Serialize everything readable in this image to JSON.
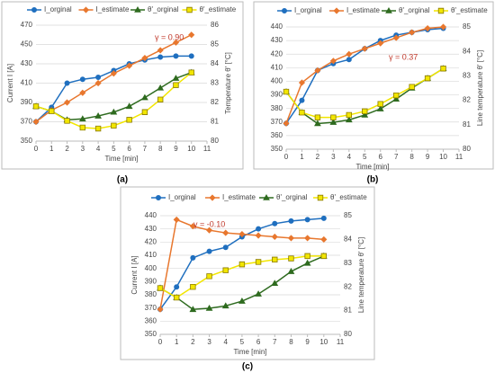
{
  "chart_data": [
    {
      "type": "line",
      "caption": "(a)",
      "annotation": "γ = 0.90",
      "xlabel": "Time [min]",
      "ylabel": "Current I [A]",
      "y2label": "Temperature θ' [°C]",
      "x": [
        0,
        1,
        2,
        3,
        4,
        5,
        6,
        7,
        8,
        9,
        10
      ],
      "xlim": [
        0,
        11
      ],
      "xticks": [
        0,
        1,
        2,
        3,
        4,
        5,
        6,
        7,
        8,
        9,
        10,
        11
      ],
      "ylim": [
        350,
        470
      ],
      "yticks": [
        350,
        370,
        390,
        410,
        430,
        450,
        470
      ],
      "y2lim": [
        80,
        86
      ],
      "y2ticks": [
        80,
        81,
        82,
        83,
        84,
        85,
        86
      ],
      "grid": true,
      "series": [
        {
          "name": "I_orginal",
          "color": "#1f6fbf",
          "marker": "circle",
          "values": [
            370,
            385,
            410,
            414,
            416,
            423,
            430,
            434,
            437,
            438,
            438
          ]
        },
        {
          "name": "I_estimate",
          "color": "#e8772e",
          "marker": "diamond",
          "values": [
            370,
            382,
            390,
            400,
            410,
            420,
            428,
            436,
            444,
            452,
            460
          ]
        },
        {
          "name": "θ'_orginal",
          "color": "#2e6b1f",
          "marker": "triangle",
          "axis": "y2",
          "values": [
            81.8,
            81.55,
            81.1,
            81.15,
            81.3,
            81.5,
            81.8,
            82.25,
            82.75,
            83.25,
            83.55
          ]
        },
        {
          "name": "θ'_estimate",
          "color": "#f2e600",
          "marker": "square",
          "axis": "y2",
          "values": [
            81.8,
            81.55,
            81.05,
            80.7,
            80.65,
            80.8,
            81.1,
            81.5,
            82.15,
            82.9,
            83.55
          ]
        }
      ]
    },
    {
      "type": "line",
      "caption": "(b)",
      "annotation": "γ = 0.37",
      "xlabel": "Time [min]",
      "y2label": "Line temperature θ' [°C]",
      "x": [
        0,
        1,
        2,
        3,
        4,
        5,
        6,
        7,
        8,
        9,
        10
      ],
      "xlim": [
        0,
        11
      ],
      "xticks": [
        0,
        1,
        2,
        3,
        4,
        5,
        6,
        7,
        8,
        9,
        10,
        11
      ],
      "ylim": [
        350,
        440
      ],
      "yticks": [
        350,
        360,
        370,
        380,
        390,
        400,
        410,
        420,
        430,
        440
      ],
      "y2lim": [
        80,
        85
      ],
      "y2ticks": [
        80,
        81,
        82,
        83,
        84,
        85
      ],
      "grid": true,
      "series": [
        {
          "name": "I_orginal",
          "color": "#1f6fbf",
          "marker": "circle",
          "values": [
            369,
            386,
            408,
            413,
            416,
            424,
            430,
            434,
            436,
            438,
            439
          ]
        },
        {
          "name": "I_estimate",
          "color": "#e8772e",
          "marker": "diamond",
          "values": [
            369,
            399,
            408,
            415,
            420,
            424,
            428,
            432,
            436,
            439,
            440
          ]
        },
        {
          "name": "θ'_orginal",
          "color": "#2e6b1f",
          "marker": "triangle",
          "axis": "y2",
          "values": [
            82.35,
            81.5,
            81.05,
            81.1,
            81.2,
            81.4,
            81.65,
            82.05,
            82.5,
            82.9,
            83.3
          ]
        },
        {
          "name": "θ'_estimate",
          "color": "#f2e600",
          "marker": "square",
          "axis": "y2",
          "values": [
            82.35,
            81.5,
            81.3,
            81.3,
            81.4,
            81.55,
            81.85,
            82.2,
            82.55,
            82.9,
            83.3
          ]
        }
      ]
    },
    {
      "type": "line",
      "caption": "(c)",
      "annotation": "γ = -0.10",
      "xlabel": "Time [min]",
      "ylabel": "Current I [A]",
      "y2label": "Line temperature θ' [°C]",
      "x": [
        0,
        1,
        2,
        3,
        4,
        5,
        6,
        7,
        8,
        9,
        10
      ],
      "xlim": [
        0,
        11
      ],
      "xticks": [
        0,
        1,
        2,
        3,
        4,
        5,
        6,
        7,
        8,
        9,
        10,
        11
      ],
      "ylim": [
        350,
        440
      ],
      "yticks": [
        350,
        360,
        370,
        380,
        390,
        400,
        410,
        420,
        430,
        440
      ],
      "y2lim": [
        80,
        85
      ],
      "y2ticks": [
        80,
        81,
        82,
        83,
        84,
        85
      ],
      "grid": true,
      "series": [
        {
          "name": "I_orginal",
          "color": "#1f6fbf",
          "marker": "circle",
          "values": [
            369,
            386,
            408,
            413,
            416,
            424,
            430,
            434,
            436,
            437,
            438
          ]
        },
        {
          "name": "I_estimate",
          "color": "#e8772e",
          "marker": "diamond",
          "values": [
            369,
            437,
            432,
            429,
            427,
            426,
            425,
            424,
            423,
            423,
            422
          ]
        },
        {
          "name": "θ'_orginal",
          "color": "#2e6b1f",
          "marker": "triangle",
          "axis": "y2",
          "values": [
            81.95,
            81.55,
            81.05,
            81.1,
            81.2,
            81.4,
            81.7,
            82.15,
            82.65,
            83.0,
            83.3
          ]
        },
        {
          "name": "θ'_estimate",
          "color": "#f2e600",
          "marker": "square",
          "axis": "y2",
          "values": [
            81.95,
            81.55,
            82.0,
            82.45,
            82.7,
            82.95,
            83.05,
            83.15,
            83.2,
            83.3,
            83.3
          ]
        }
      ]
    }
  ]
}
